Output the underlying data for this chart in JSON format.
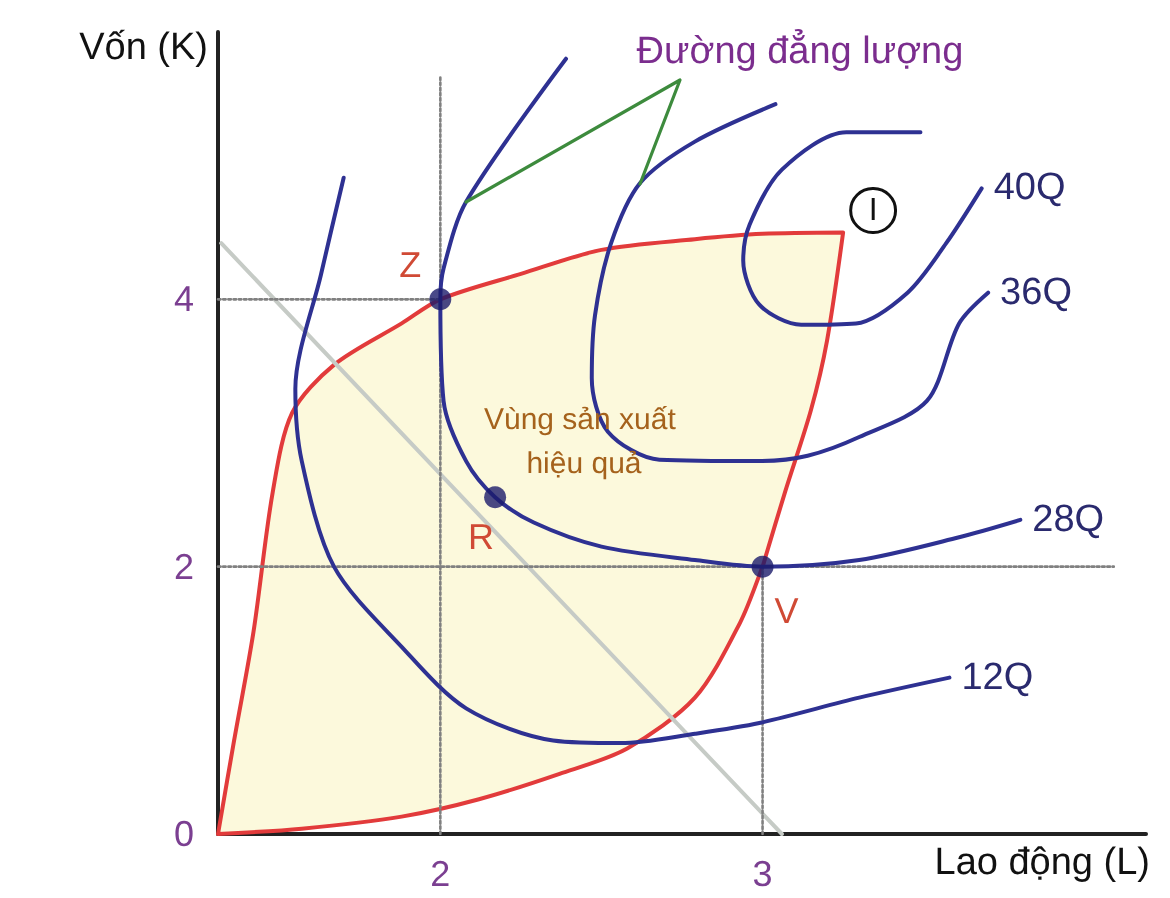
{
  "chart_data": {
    "type": "line",
    "xlabel": "Lao động (L)",
    "ylabel": "Vốn (K)",
    "xlim": [
      1.31,
      4.19
    ],
    "xticks": [
      2,
      3
    ],
    "ylim": [
      0,
      6
    ],
    "yticks": [
      0,
      2,
      4
    ],
    "grid": false,
    "legend": false,
    "marker": "none",
    "line_style": "solid",
    "series": [
      {
        "type": "area",
        "color": "#e23b3b",
        "x": [
          1.31,
          1.36,
          1.42,
          1.48,
          1.54,
          1.67,
          1.88,
          2,
          2.25,
          2.5,
          2.79,
          3,
          3.25,
          3.2,
          3.15,
          3.07,
          3.01,
          3,
          2.93,
          2.79,
          2.58,
          2.37,
          2.12,
          1.88,
          1.57,
          1.31
        ],
        "values": [
          0,
          0.7,
          1.51,
          2.56,
          3.15,
          3.51,
          3.82,
          4,
          4.19,
          4.37,
          4.45,
          4.49,
          4.5,
          3.69,
          3.17,
          2.56,
          2.08,
          2,
          1.58,
          1.02,
          0.64,
          0.45,
          0.26,
          0.13,
          0.04,
          0
        ]
      },
      {
        "color": "#c6cbc6",
        "x": [
          1.32,
          3.06
        ],
        "values": [
          4.42,
          0
        ]
      },
      {
        "color": "#808080",
        "line_style": "dotted",
        "x": [
          2,
          2
        ],
        "values": [
          0,
          5.66
        ]
      },
      {
        "color": "#808080",
        "line_style": "dotted",
        "x": [
          1.31,
          2
        ],
        "values": [
          4,
          4
        ]
      },
      {
        "color": "#808080",
        "line_style": "dotted",
        "x": [
          1.31,
          4.09
        ],
        "values": [
          2,
          2
        ]
      },
      {
        "color": "#808080",
        "line_style": "dotted",
        "x": [
          3,
          3
        ],
        "values": [
          0,
          2
        ]
      },
      {
        "name": "12Q",
        "color": "#2e3192",
        "x": [
          1.7,
          1.63,
          1.55,
          1.57,
          1.67,
          1.88,
          2.08,
          2.35,
          2.56,
          2.79,
          2.99,
          3.3,
          3.58
        ],
        "values": [
          4.91,
          4.19,
          3.33,
          2.79,
          2,
          1.4,
          0.94,
          0.7,
          0.68,
          0.75,
          0.83,
          1.02,
          1.17
        ]
      },
      {
        "name": "28Q",
        "color": "#2e3192",
        "x": [
          2.39,
          2.08,
          2.01,
          2,
          2.01,
          2.08,
          2.17,
          2.29,
          2.5,
          2.79,
          3,
          3.3,
          3.61,
          3.8
        ],
        "values": [
          5.8,
          4.73,
          4.23,
          4,
          3.24,
          2.79,
          2.52,
          2.33,
          2.15,
          2.05,
          2,
          2.05,
          2.22,
          2.35
        ]
      },
      {
        "name": "36Q",
        "color": "#2e3192",
        "x": [
          3.04,
          2.79,
          2.62,
          2.53,
          2.48,
          2.47,
          2.52,
          2.68,
          2.99,
          3.14,
          3.3,
          3.51,
          3.61,
          3.7
        ],
        "values": [
          5.46,
          5.18,
          4.87,
          4.42,
          3.88,
          3.41,
          3.01,
          2.8,
          2.79,
          2.83,
          2.97,
          3.24,
          3.82,
          4.05
        ]
      },
      {
        "name": "40Q",
        "color": "#2e3192",
        "x": [
          3.49,
          3.26,
          3.06,
          2.96,
          2.94,
          2.99,
          3.12,
          3.29,
          3.45,
          3.57,
          3.68
        ],
        "values": [
          5.25,
          5.25,
          4.97,
          4.56,
          4.29,
          3.96,
          3.81,
          3.82,
          4.05,
          4.42,
          4.83
        ]
      },
      {
        "type": "scatter",
        "color": "#1c1c6b",
        "marker": "circle",
        "x": [
          2,
          2.17,
          3
        ],
        "values": [
          4,
          2.52,
          2
        ]
      }
    ],
    "annotations": [
      {
        "text": "Z",
        "x": 2,
        "y": 4
      },
      {
        "text": "R",
        "x": 2.17,
        "y": 2.52
      },
      {
        "text": "V",
        "x": 3,
        "y": 2
      },
      {
        "text": "I",
        "x": 3.25,
        "y": 4.5
      },
      "Vùng sản xuất hiệu quả",
      "Đường đẳng lượng"
    ]
  }
}
